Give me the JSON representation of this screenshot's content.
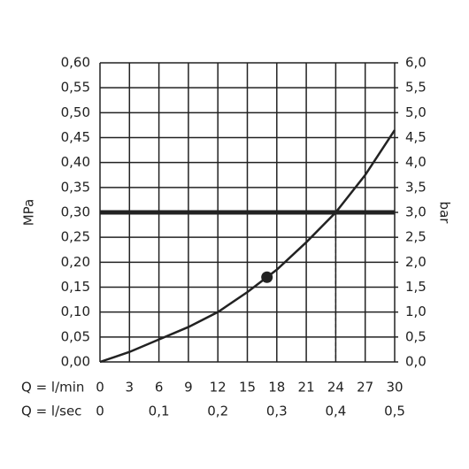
{
  "chart_data": {
    "type": "line",
    "y_label": "MPa",
    "y2_label": "bar",
    "x_label": "Q = l/min",
    "x2_label": "Q = l/sec",
    "x": [
      0,
      3,
      6,
      9,
      12,
      15,
      18,
      21,
      24,
      27,
      30
    ],
    "values": [
      0,
      0.02,
      0.045,
      0.07,
      0.1,
      0.14,
      0.185,
      0.24,
      0.3,
      0.375,
      0.465
    ],
    "color": "#222222",
    "marker": {
      "x": 17,
      "y": 0.17
    },
    "reference_y": 0.3,
    "reference_x": 24,
    "xlim": [
      0,
      30
    ],
    "xticks": [
      0,
      3,
      6,
      9,
      12,
      15,
      18,
      21,
      24,
      27,
      30
    ],
    "x2lim": [
      0,
      0.5
    ],
    "x2ticks": [
      0,
      {
        "value": 0.1,
        "label": "0,1"
      },
      {
        "value": 0.2,
        "label": "0,2"
      },
      {
        "value": 0.3,
        "label": "0,3"
      },
      {
        "value": 0.4,
        "label": "0,4"
      },
      {
        "value": 0.5,
        "label": "0,5"
      }
    ],
    "ylim": [
      0,
      0.6
    ],
    "yticks": [
      {
        "value": 0,
        "label": "0,00"
      },
      {
        "value": 0.05,
        "label": "0,05"
      },
      {
        "value": 0.1,
        "label": "0,10"
      },
      {
        "value": 0.15,
        "label": "0,15"
      },
      {
        "value": 0.2,
        "label": "0,20"
      },
      {
        "value": 0.25,
        "label": "0,25"
      },
      {
        "value": 0.3,
        "label": "0,30"
      },
      {
        "value": 0.35,
        "label": "0,35"
      },
      {
        "value": 0.4,
        "label": "0,40"
      },
      {
        "value": 0.45,
        "label": "0,45"
      },
      {
        "value": 0.5,
        "label": "0,50"
      },
      {
        "value": 0.55,
        "label": "0,55"
      },
      {
        "value": 0.6,
        "label": "0,60"
      }
    ],
    "y2lim": [
      0,
      6
    ],
    "y2ticks": [
      {
        "value": 0,
        "label": "0,0"
      },
      {
        "value": 0.5,
        "label": "0,5"
      },
      {
        "value": 1,
        "label": "1,0"
      },
      {
        "value": 1.5,
        "label": "1,5"
      },
      {
        "value": 2,
        "label": "2,0"
      },
      {
        "value": 2.5,
        "label": "2,5"
      },
      {
        "value": 3,
        "label": "3,0"
      },
      {
        "value": 3.5,
        "label": "3,5"
      },
      {
        "value": 4,
        "label": "4,0"
      },
      {
        "value": 4.5,
        "label": "4,5"
      },
      {
        "value": 5,
        "label": "5,0"
      },
      {
        "value": 5.5,
        "label": "5,5"
      },
      {
        "value": 6,
        "label": "6,0"
      }
    ],
    "grid": true
  }
}
